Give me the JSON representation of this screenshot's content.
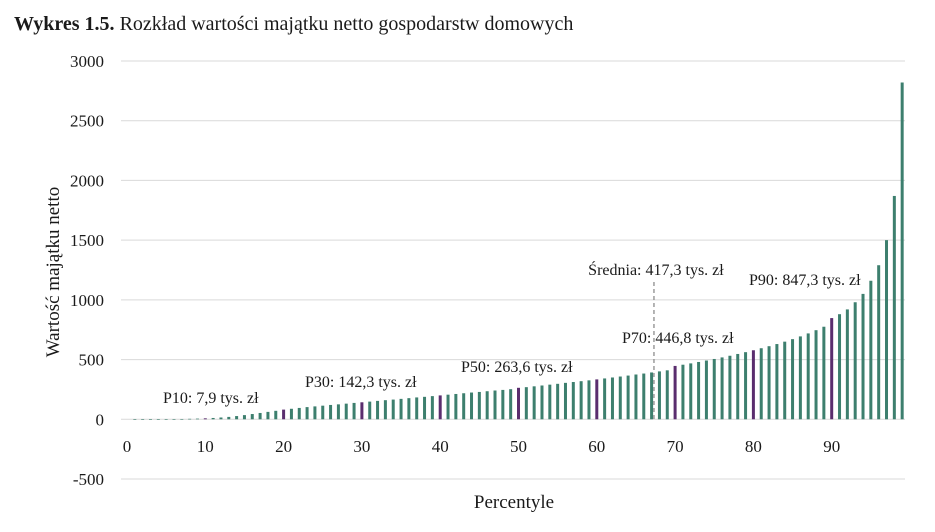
{
  "chart_data": {
    "type": "bar",
    "title_prefix": "Wykres 1.5.",
    "title": "Rozkład wartości majątku netto gospodarstw domowych",
    "xlabel": "Percentyle",
    "ylabel": "Wartość majątku netto",
    "ylim": [
      -500,
      3000
    ],
    "yticks": [
      "3000",
      "2500",
      "2000",
      "1500",
      "1000",
      "500",
      "0",
      "-500"
    ],
    "ytick_values": [
      3000,
      2500,
      2000,
      1500,
      1000,
      500,
      0,
      -500
    ],
    "xticks": [
      "0",
      "10",
      "20",
      "30",
      "40",
      "50",
      "60",
      "70",
      "80",
      "90"
    ],
    "xtick_values": [
      0,
      10,
      20,
      30,
      40,
      50,
      60,
      70,
      80,
      90
    ],
    "grid": true,
    "colors": {
      "bar": "#3d7f6e",
      "highlight": "#5a2d6e",
      "grid": "#d9d9d9",
      "mean_line": "#8c8c8c"
    },
    "x": [
      1,
      2,
      3,
      4,
      5,
      6,
      7,
      8,
      9,
      10,
      11,
      12,
      13,
      14,
      15,
      16,
      17,
      18,
      19,
      20,
      21,
      22,
      23,
      24,
      25,
      26,
      27,
      28,
      29,
      30,
      31,
      32,
      33,
      34,
      35,
      36,
      37,
      38,
      39,
      40,
      41,
      42,
      43,
      44,
      45,
      46,
      47,
      48,
      49,
      50,
      51,
      52,
      53,
      54,
      55,
      56,
      57,
      58,
      59,
      60,
      61,
      62,
      63,
      64,
      65,
      66,
      67,
      68,
      69,
      70,
      71,
      72,
      73,
      74,
      75,
      76,
      77,
      78,
      79,
      80,
      81,
      82,
      83,
      84,
      85,
      86,
      87,
      88,
      89,
      90,
      91,
      92,
      93,
      94,
      95,
      96,
      97,
      98,
      99
    ],
    "values": [
      -1,
      -0.5,
      0,
      0.3,
      0.8,
      1.5,
      2.5,
      4,
      5.5,
      7.9,
      11,
      15,
      20,
      27,
      35,
      44,
      53,
      62,
      71,
      81,
      88,
      95,
      102,
      108,
      114,
      120,
      125,
      131,
      137,
      142.3,
      148,
      154,
      160,
      165,
      171,
      177,
      183,
      188,
      194,
      200,
      206,
      212,
      218,
      224,
      229,
      235,
      241,
      246,
      252,
      263.6,
      269,
      276,
      283,
      290,
      297,
      305,
      312,
      319,
      326,
      334,
      342,
      350,
      358,
      366,
      375,
      383,
      392,
      401,
      410,
      446.8,
      457,
      468,
      480,
      492,
      505,
      518,
      532,
      547,
      562,
      578,
      595,
      612,
      630,
      650,
      671,
      694,
      719,
      746,
      775,
      847.3,
      880,
      920,
      980,
      1050,
      1160,
      1290,
      1500,
      1870,
      2820
    ],
    "highlight_x": [
      10,
      20,
      30,
      40,
      50,
      60,
      70,
      80,
      90
    ],
    "mean": {
      "x": 67.3,
      "label": "Średnia: 417,3 tys. zł"
    },
    "annotations": [
      {
        "name": "annotation-p10",
        "text": "P10: 7,9 tys. zł",
        "x": 10
      },
      {
        "name": "annotation-p30",
        "text": "P30: 142,3 tys. zł",
        "x": 30
      },
      {
        "name": "annotation-p50",
        "text": "P50: 263,6 tys. zł",
        "x": 50
      },
      {
        "name": "annotation-p70",
        "text": "P70: 446,8 tys. zł",
        "x": 70
      },
      {
        "name": "annotation-p90",
        "text": "P90: 847,3 tys. zł",
        "x": 90
      }
    ]
  }
}
